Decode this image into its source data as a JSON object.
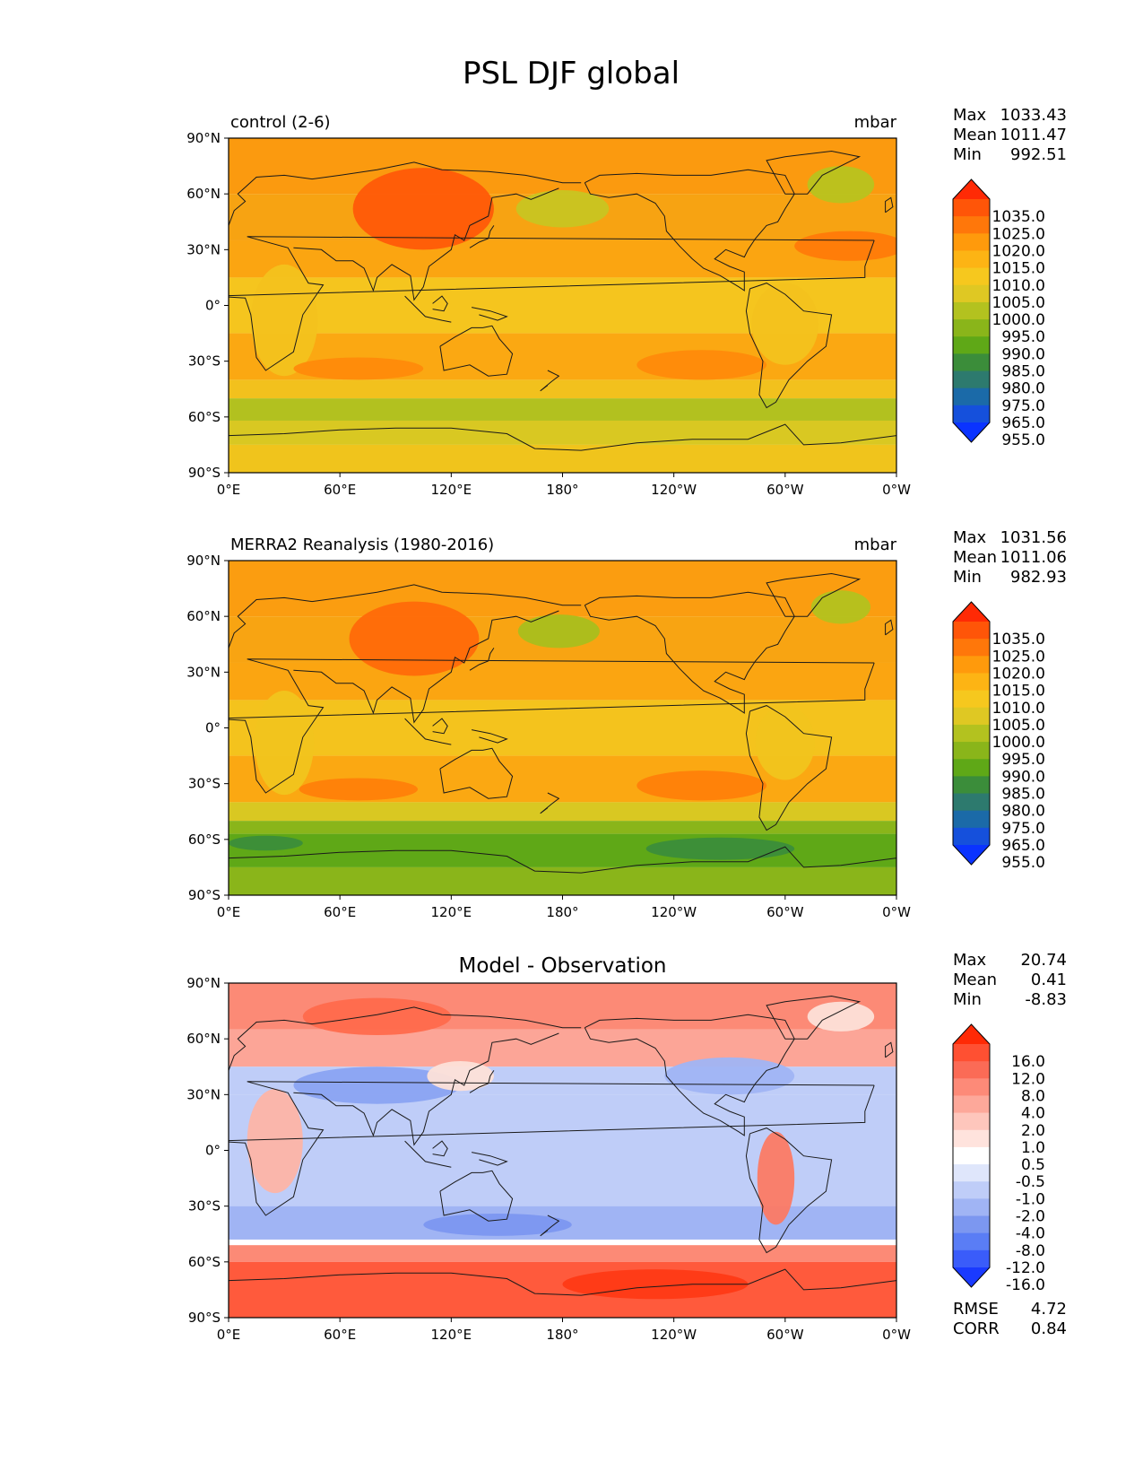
{
  "figure": {
    "title": "PSL DJF global",
    "colors": {
      "ocean_land_note": "filled contours",
      "coastline": "#1a1a1a",
      "frame": "#000000"
    }
  },
  "lon_ticks": [
    "0°E",
    "60°E",
    "120°E",
    "180°",
    "120°W",
    "60°W",
    "0°W"
  ],
  "lat_ticks": [
    "90°N",
    "60°N",
    "30°N",
    "0°",
    "30°S",
    "60°S",
    "90°S"
  ],
  "chart_data": [
    {
      "type": "heatmap",
      "id": "control",
      "left_title": "control (2-6)",
      "units": "mbar",
      "center_title": "",
      "xlabel": "",
      "ylabel": "",
      "xlim": [
        0,
        360
      ],
      "ylim": [
        -90,
        90
      ],
      "stats": [
        {
          "label": "Max",
          "value": "1033.43"
        },
        {
          "label": "Mean",
          "value": "1011.47"
        },
        {
          "label": "Min",
          "value": "992.51"
        }
      ],
      "colorbar_levels": [
        "1035.0",
        "1025.0",
        "1020.0",
        "1015.0",
        "1010.0",
        "1005.0",
        "1000.0",
        "995.0",
        "990.0",
        "985.0",
        "980.0",
        "975.0",
        "965.0",
        "955.0"
      ],
      "colorbar_colors": [
        "#ff2a05",
        "#ff5508",
        "#ff770a",
        "#ff9a0c",
        "#fdb414",
        "#f6c81e",
        "#dfc823",
        "#b3c21f",
        "#8ab51a",
        "#5fa817",
        "#3b8d3a",
        "#2d7a6e",
        "#1b6aa8",
        "#1550dc",
        "#0a33ff"
      ],
      "extend_top_color": "#ff2a05",
      "extend_bottom_color": "#0a33ff",
      "bands_note": "approximate zonal structure",
      "field": [
        {
          "lat": [
            60,
            90
          ],
          "color": "#fb9a0f"
        },
        {
          "lat": [
            35,
            60
          ],
          "color": "#f7a312"
        },
        {
          "lat": [
            15,
            35
          ],
          "color": "#fba511"
        },
        {
          "lat": [
            -15,
            15
          ],
          "color": "#f5c51e"
        },
        {
          "lat": [
            -40,
            -15
          ],
          "color": "#fba812"
        },
        {
          "lat": [
            -50,
            -40
          ],
          "color": "#f2c11d"
        },
        {
          "lat": [
            -62,
            -50
          ],
          "color": "#b2c11f"
        },
        {
          "lat": [
            -75,
            -62
          ],
          "color": "#d9c822"
        },
        {
          "lat": [
            -90,
            -75
          ],
          "color": "#f0c41c"
        }
      ],
      "blobs": [
        {
          "lon": 105,
          "lat": 52,
          "rlon": 38,
          "rlat": 22,
          "color": "#ff5a08"
        },
        {
          "lon": 180,
          "lat": 52,
          "rlon": 25,
          "rlat": 10,
          "color": "#c8c522"
        },
        {
          "lon": 330,
          "lat": 65,
          "rlon": 18,
          "rlat": 10,
          "color": "#b8c31f"
        },
        {
          "lon": 30,
          "lat": -8,
          "rlon": 18,
          "rlat": 30,
          "color": "#f3c21d"
        },
        {
          "lon": 300,
          "lat": -10,
          "rlon": 18,
          "rlat": 22,
          "color": "#f3c21d"
        },
        {
          "lon": 70,
          "lat": -34,
          "rlon": 35,
          "rlat": 6,
          "color": "#ff8a0b"
        },
        {
          "lon": 255,
          "lat": -32,
          "rlon": 35,
          "rlat": 8,
          "color": "#ff8a0b"
        },
        {
          "lon": 335,
          "lat": 32,
          "rlon": 30,
          "rlat": 8,
          "color": "#ff7a0a"
        }
      ]
    },
    {
      "type": "heatmap",
      "id": "obs",
      "left_title": "MERRA2 Reanalysis (1980-2016)",
      "units": "mbar",
      "center_title": "",
      "xlabel": "",
      "ylabel": "",
      "xlim": [
        0,
        360
      ],
      "ylim": [
        -90,
        90
      ],
      "stats": [
        {
          "label": "Max",
          "value": "1031.56"
        },
        {
          "label": "Mean",
          "value": "1011.06"
        },
        {
          "label": "Min",
          "value": "982.93"
        }
      ],
      "colorbar_levels": [
        "1035.0",
        "1025.0",
        "1020.0",
        "1015.0",
        "1010.0",
        "1005.0",
        "1000.0",
        "995.0",
        "990.0",
        "985.0",
        "980.0",
        "975.0",
        "965.0",
        "955.0"
      ],
      "colorbar_colors": [
        "#ff2a05",
        "#ff5508",
        "#ff770a",
        "#ff9a0c",
        "#fdb414",
        "#f6c81e",
        "#dfc823",
        "#b3c21f",
        "#8ab51a",
        "#5fa817",
        "#3b8d3a",
        "#2d7a6e",
        "#1b6aa8",
        "#1550dc",
        "#0a33ff"
      ],
      "extend_top_color": "#ff2a05",
      "extend_bottom_color": "#0a33ff",
      "bands_note": "approximate zonal structure",
      "field": [
        {
          "lat": [
            60,
            90
          ],
          "color": "#fb9d10"
        },
        {
          "lat": [
            35,
            60
          ],
          "color": "#f8a412"
        },
        {
          "lat": [
            15,
            35
          ],
          "color": "#fba511"
        },
        {
          "lat": [
            -15,
            15
          ],
          "color": "#f4c31d"
        },
        {
          "lat": [
            -40,
            -15
          ],
          "color": "#fba812"
        },
        {
          "lat": [
            -50,
            -40
          ],
          "color": "#d9c822"
        },
        {
          "lat": [
            -57,
            -50
          ],
          "color": "#8ab51a"
        },
        {
          "lat": [
            -75,
            -57
          ],
          "color": "#5fa817"
        },
        {
          "lat": [
            -90,
            -75
          ],
          "color": "#8ab51a"
        }
      ],
      "blobs": [
        {
          "lon": 100,
          "lat": 48,
          "rlon": 35,
          "rlat": 20,
          "color": "#ff6a09"
        },
        {
          "lon": 178,
          "lat": 52,
          "rlon": 22,
          "rlat": 9,
          "color": "#a9bf1e"
        },
        {
          "lon": 330,
          "lat": 65,
          "rlon": 16,
          "rlat": 9,
          "color": "#b3c21f"
        },
        {
          "lon": 30,
          "lat": -8,
          "rlon": 16,
          "rlat": 28,
          "color": "#f1c41d"
        },
        {
          "lon": 300,
          "lat": -8,
          "rlon": 16,
          "rlat": 20,
          "color": "#f1c41d"
        },
        {
          "lon": 70,
          "lat": -33,
          "rlon": 32,
          "rlat": 6,
          "color": "#ff7f0a"
        },
        {
          "lon": 255,
          "lat": -31,
          "rlon": 35,
          "rlat": 8,
          "color": "#ff7f0a"
        },
        {
          "lon": 265,
          "lat": -65,
          "rlon": 40,
          "rlat": 6,
          "color": "#3b8d3a"
        },
        {
          "lon": 20,
          "lat": -62,
          "rlon": 20,
          "rlat": 4,
          "color": "#3b8d3a"
        }
      ]
    },
    {
      "type": "heatmap",
      "id": "diff",
      "left_title": "",
      "units": "",
      "center_title": "Model - Observation",
      "xlabel": "",
      "ylabel": "",
      "xlim": [
        0,
        360
      ],
      "ylim": [
        -90,
        90
      ],
      "stats": [
        {
          "label": "Max",
          "value": "20.74"
        },
        {
          "label": "Mean",
          "value": "0.41"
        },
        {
          "label": "Min",
          "value": "-8.83"
        }
      ],
      "colorbar_levels": [
        "16.0",
        "12.0",
        "8.0",
        "4.0",
        "2.0",
        "1.0",
        "0.5",
        "-0.5",
        "-1.0",
        "-2.0",
        "-4.0",
        "-8.0",
        "-12.0",
        "-16.0"
      ],
      "colorbar_colors": [
        "#ff2a05",
        "#ff5032",
        "#fb6b56",
        "#fd8a78",
        "#fda89a",
        "#fec6bc",
        "#ffe3dd",
        "#ffffff",
        "#dfe6fb",
        "#bfcdf8",
        "#a0b4f4",
        "#7c97f0",
        "#5a7df5",
        "#3a5cfa",
        "#1a3aff"
      ],
      "extend_top_color": "#ff2a05",
      "extend_bottom_color": "#1a3aff",
      "bands_note": "approximate zonal structure",
      "field": [
        {
          "lat": [
            65,
            90
          ],
          "color": "#fc8a76"
        },
        {
          "lat": [
            45,
            65
          ],
          "color": "#fca597"
        },
        {
          "lat": [
            30,
            45
          ],
          "color": "#bfcdf8"
        },
        {
          "lat": [
            -30,
            30
          ],
          "color": "#bfcdf8"
        },
        {
          "lat": [
            -48,
            -30
          ],
          "color": "#a0b4f4"
        },
        {
          "lat": [
            -51,
            -48
          ],
          "color": "#ffffff"
        },
        {
          "lat": [
            -60,
            -51
          ],
          "color": "#fc8a76"
        },
        {
          "lat": [
            -90,
            -60
          ],
          "color": "#ff5a3c"
        }
      ],
      "blobs": [
        {
          "lon": 80,
          "lat": 35,
          "rlon": 45,
          "rlat": 10,
          "color": "#8aa3f2"
        },
        {
          "lon": 25,
          "lat": 5,
          "rlon": 15,
          "rlat": 28,
          "color": "#fdb4a6"
        },
        {
          "lon": 295,
          "lat": -15,
          "rlon": 10,
          "rlat": 25,
          "color": "#fc7a64"
        },
        {
          "lon": 270,
          "lat": 40,
          "rlon": 35,
          "rlat": 10,
          "color": "#a0b4f4"
        },
        {
          "lon": 125,
          "lat": 40,
          "rlon": 18,
          "rlat": 8,
          "color": "#fde0d8"
        },
        {
          "lon": 145,
          "lat": -40,
          "rlon": 40,
          "rlat": 6,
          "color": "#7c97f0"
        },
        {
          "lon": 230,
          "lat": -72,
          "rlon": 50,
          "rlat": 8,
          "color": "#ff3a15"
        },
        {
          "lon": 80,
          "lat": 72,
          "rlon": 40,
          "rlat": 10,
          "color": "#ff6a4c"
        },
        {
          "lon": 330,
          "lat": 72,
          "rlon": 18,
          "rlat": 8,
          "color": "#fde0d8"
        }
      ],
      "extra_stats": [
        {
          "label": "RMSE",
          "value": "4.72"
        },
        {
          "label": "CORR",
          "value": "0.84"
        }
      ]
    }
  ]
}
